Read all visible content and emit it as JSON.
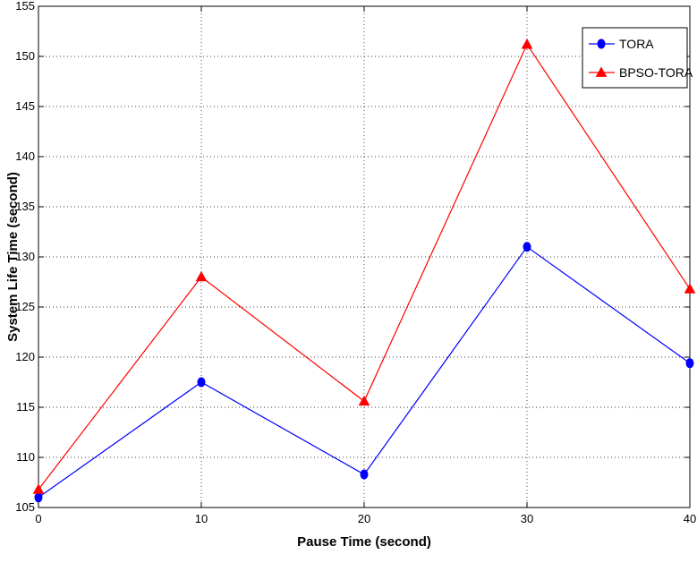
{
  "chart_data": {
    "type": "line",
    "title": "",
    "xlabel": "Pause Time (second)",
    "ylabel": "System Life Time (second)",
    "x": [
      0,
      10,
      20,
      30,
      40
    ],
    "xlim": [
      0,
      40
    ],
    "ylim": [
      105,
      155
    ],
    "xticks": [
      "0",
      "10",
      "20",
      "30",
      "40"
    ],
    "yticks": [
      "105",
      "110",
      "115",
      "120",
      "125",
      "130",
      "135",
      "140",
      "145",
      "150",
      "155"
    ],
    "grid": true,
    "legend_position": "top-right",
    "series": [
      {
        "name": "TORA",
        "values": [
          106.0,
          117.5,
          108.3,
          131.0,
          119.4
        ],
        "color": "#0000ff",
        "marker": "circle"
      },
      {
        "name": "BPSO-TORA",
        "values": [
          106.8,
          128.0,
          115.6,
          151.2,
          126.8
        ],
        "color": "#ff0000",
        "marker": "triangle"
      }
    ]
  }
}
